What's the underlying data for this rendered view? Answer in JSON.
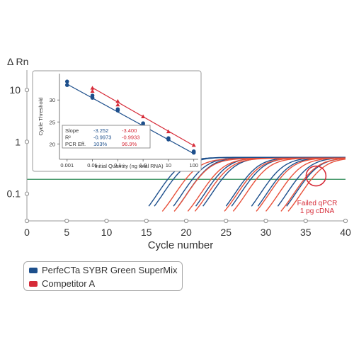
{
  "chart_data": [
    {
      "type": "line",
      "ylabel": "Δ Rn",
      "xlabel": "Cycle number",
      "xlim": [
        0,
        40
      ],
      "ylim": [
        0.03,
        20
      ],
      "yscale": "log",
      "x_ticks": [
        "0",
        "5",
        "10",
        "15",
        "20",
        "25",
        "30",
        "35",
        "40"
      ],
      "y_ticks": [
        "0.1",
        "1",
        "10"
      ],
      "threshold": 0.19,
      "threshold_color": "#2e8b57",
      "grid": false,
      "series": [
        {
          "name": "PerfeCTa SYBR Green SuperMix",
          "color": "#1d4f8c",
          "ct": [
            17.3,
            18.0,
            20.4,
            21.0,
            23.2,
            24.1,
            27.0,
            27.7,
            30.2,
            31.0,
            33.5,
            34.6
          ],
          "plateau": [
            11.5,
            11.2,
            10.7,
            10.4,
            10.0,
            9.7,
            9.3,
            9.0,
            8.6,
            8.2,
            7.6,
            7.0
          ]
        },
        {
          "name": "Competitor A",
          "color": "#e8503a",
          "ct": [
            19.5,
            21.0,
            22.7,
            23.6,
            27.3,
            28.4,
            31.3,
            32.5,
            34.4,
            35.3
          ],
          "plateau": [
            3.4,
            3.6,
            3.9,
            4.1,
            4.6,
            4.8,
            5.0,
            5.2,
            5.3,
            5.4
          ]
        }
      ],
      "annotation": {
        "lines": [
          "Failed qPCR",
          "1 pg cDNA"
        ],
        "x": 36.3,
        "y": 0.22,
        "color": "#d62b38"
      }
    },
    {
      "type": "scatter",
      "title": "",
      "xlabel": "Initial Quantity (ng total RNA)",
      "ylabel": "Cycle Threshold",
      "xscale": "log",
      "x_ticks": [
        "0.001",
        "0.01",
        "0.1",
        "1.0",
        "10",
        "100"
      ],
      "y_ticks": [
        "20",
        "25",
        "30"
      ],
      "xlim": [
        0.0005,
        150
      ],
      "ylim": [
        16.5,
        36
      ],
      "series": [
        {
          "name": "PerfeCTa SYBR Green SuperMix",
          "color": "#1d4f8c",
          "marker": "circle",
          "x": [
            0.001,
            0.001,
            0.01,
            0.01,
            0.1,
            0.1,
            1,
            1,
            10,
            10,
            100,
            100
          ],
          "y": [
            34.2,
            33.4,
            31.0,
            30.5,
            27.9,
            27.6,
            24.7,
            24.3,
            21.3,
            21.0,
            18.3,
            18.0
          ],
          "fit": {
            "x": [
              0.001,
              100
            ],
            "y": [
              33.6,
              17.8
            ]
          }
        },
        {
          "name": "Competitor A",
          "color": "#d62b38",
          "marker": "triangle",
          "x": [
            0.01,
            0.01,
            0.1,
            0.1,
            1,
            10,
            100
          ],
          "y": [
            32.7,
            32.0,
            29.7,
            28.9,
            26.2,
            22.8,
            19.7
          ],
          "fit": {
            "x": [
              0.01,
              100
            ],
            "y": [
              32.8,
              19.6
            ]
          }
        }
      ],
      "stats_table": {
        "rows": [
          {
            "label": "Slope",
            "a": "-3.252",
            "b": "-3.400"
          },
          {
            "label": "R²",
            "a": "-0.9973",
            "b": "-0.9933"
          },
          {
            "label": "PCR Eff.",
            "a": "103%",
            "b": "96.9%"
          }
        ],
        "color_a": "#1d4f8c",
        "color_b": "#d62b38"
      }
    }
  ],
  "legend": {
    "items": [
      {
        "label": "PerfeCTa SYBR Green SuperMix",
        "color": "#1d4f8c"
      },
      {
        "label": "Competitor A",
        "color": "#d62b38"
      }
    ]
  }
}
